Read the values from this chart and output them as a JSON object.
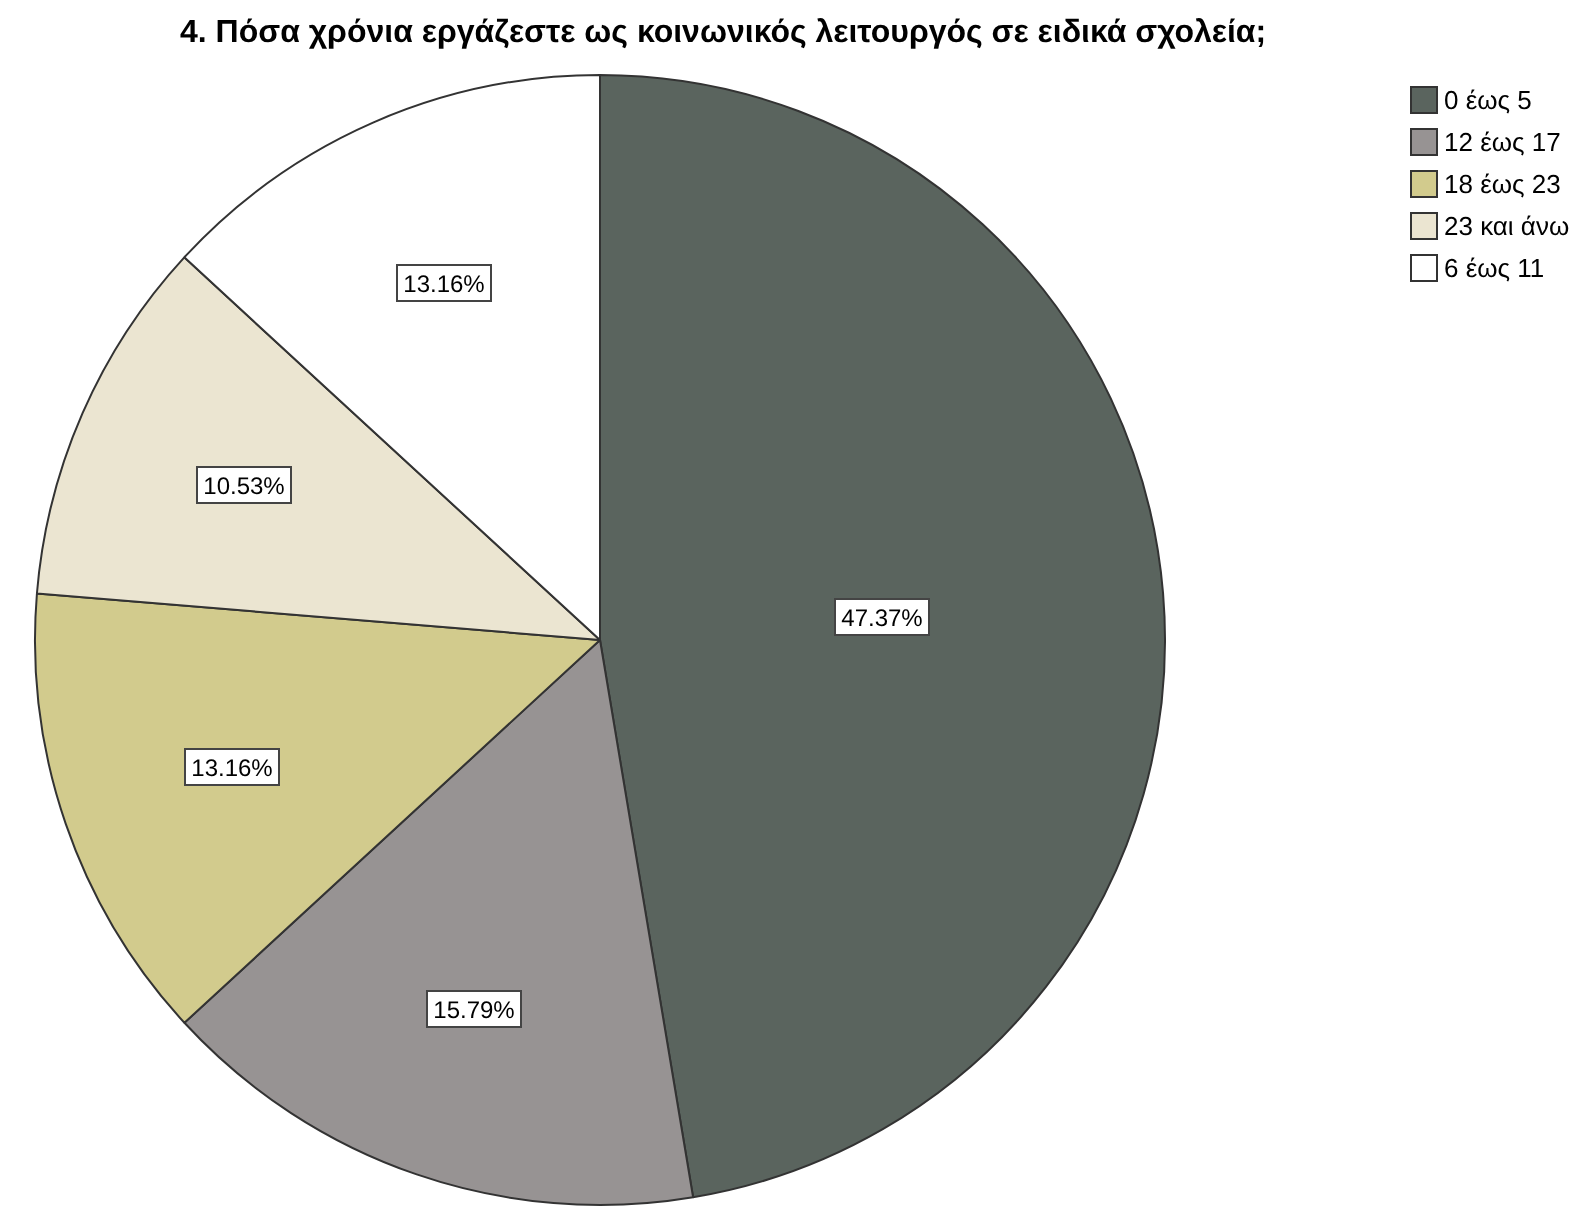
{
  "chart_data": {
    "type": "pie",
    "title": "4. Πόσα χρόνια εργάζεστε ως κοινωνικός λειτουργός σε ειδικά σχολεία;",
    "categories": [
      "0 έως 5",
      "12 έως 17",
      "18 έως 23",
      "23 και άνω",
      "6 έως 11"
    ],
    "values": [
      47.37,
      15.79,
      13.16,
      10.53,
      13.16
    ],
    "colors": [
      "#5a645e",
      "#979393",
      "#d2cb8d",
      "#ebe5d1",
      "#ffffff"
    ],
    "value_labels": [
      "47.37%",
      "15.79%",
      "13.16%",
      "10.53%",
      "13.16%"
    ],
    "legend": "top right"
  }
}
